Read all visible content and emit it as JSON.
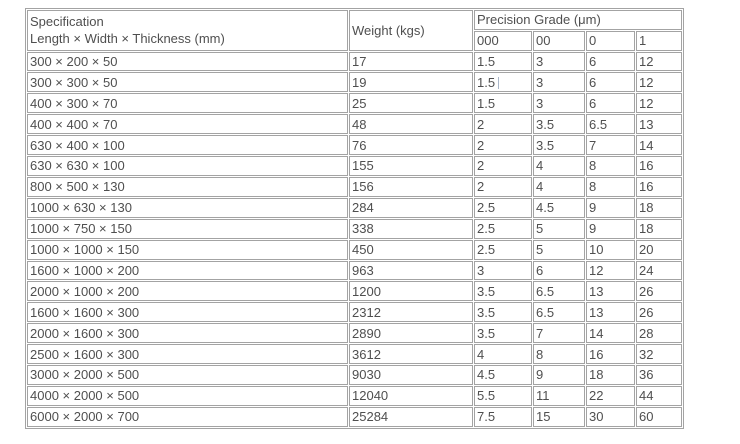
{
  "page": {
    "background": "#ffffff",
    "border_color": "#a3a3a3",
    "text_color": "#4f4f4f"
  },
  "table": {
    "header": {
      "specification_line1": "Specification",
      "specification_line2": "Length × Width × Thickness (mm)",
      "weight": "Weight (kgs)",
      "precision_grade": "Precision Grade (μm)",
      "grade_columns": [
        "000",
        "00",
        "0",
        "1"
      ]
    },
    "rows": [
      {
        "spec": "300 × 200 × 50",
        "weight": "17",
        "grades": [
          "1.5",
          "3",
          "6",
          "12"
        ],
        "caret": false
      },
      {
        "spec": "300 × 300 × 50",
        "weight": "19",
        "grades": [
          "1.5",
          "3",
          "6",
          "12"
        ],
        "caret": true
      },
      {
        "spec": "400 × 300 × 70",
        "weight": "25",
        "grades": [
          "1.5",
          "3",
          "6",
          "12"
        ],
        "caret": false
      },
      {
        "spec": "400 × 400 × 70",
        "weight": "48",
        "grades": [
          "2",
          "3.5",
          "6.5",
          "13"
        ],
        "caret": false
      },
      {
        "spec": "630 × 400 × 100",
        "weight": "76",
        "grades": [
          "2",
          "3.5",
          "7",
          "14"
        ],
        "caret": false
      },
      {
        "spec": "630 × 630 × 100",
        "weight": "155",
        "grades": [
          "2",
          "4",
          "8",
          "16"
        ],
        "caret": false
      },
      {
        "spec": "800 × 500 × 130",
        "weight": "156",
        "grades": [
          "2",
          "4",
          "8",
          "16"
        ],
        "caret": false
      },
      {
        "spec": "1000 × 630 × 130",
        "weight": "284",
        "grades": [
          "2.5",
          "4.5",
          "9",
          "18"
        ],
        "caret": false
      },
      {
        "spec": "1000 × 750 × 150",
        "weight": "338",
        "grades": [
          "2.5",
          "5",
          "9",
          "18"
        ],
        "caret": false
      },
      {
        "spec": "1000 × 1000 × 150",
        "weight": "450",
        "grades": [
          "2.5",
          "5",
          "10",
          "20"
        ],
        "caret": false
      },
      {
        "spec": "1600 × 1000 × 200",
        "weight": "963",
        "grades": [
          "3",
          "6",
          "12",
          "24"
        ],
        "caret": false
      },
      {
        "spec": "2000 × 1000 × 200",
        "weight": "1200",
        "grades": [
          "3.5",
          "6.5",
          "13",
          "26"
        ],
        "caret": false
      },
      {
        "spec": "1600 × 1600 × 300",
        "weight": "2312",
        "grades": [
          "3.5",
          "6.5",
          "13",
          "26"
        ],
        "caret": false
      },
      {
        "spec": "2000 × 1600 × 300",
        "weight": "2890",
        "grades": [
          "3.5",
          "7",
          "14",
          "28"
        ],
        "caret": false
      },
      {
        "spec": "2500 × 1600 × 300",
        "weight": "3612",
        "grades": [
          "4",
          "8",
          "16",
          "32"
        ],
        "caret": false
      },
      {
        "spec": "3000 × 2000 × 500",
        "weight": "9030",
        "grades": [
          "4.5",
          "9",
          "18",
          "36"
        ],
        "caret": false
      },
      {
        "spec": "4000 × 2000 × 500",
        "weight": "12040",
        "grades": [
          "5.5",
          "11",
          "22",
          "44"
        ],
        "caret": false
      },
      {
        "spec": "6000 × 2000 × 700",
        "weight": "25284",
        "grades": [
          "7.5",
          "15",
          "30",
          "60"
        ],
        "caret": false
      }
    ]
  }
}
